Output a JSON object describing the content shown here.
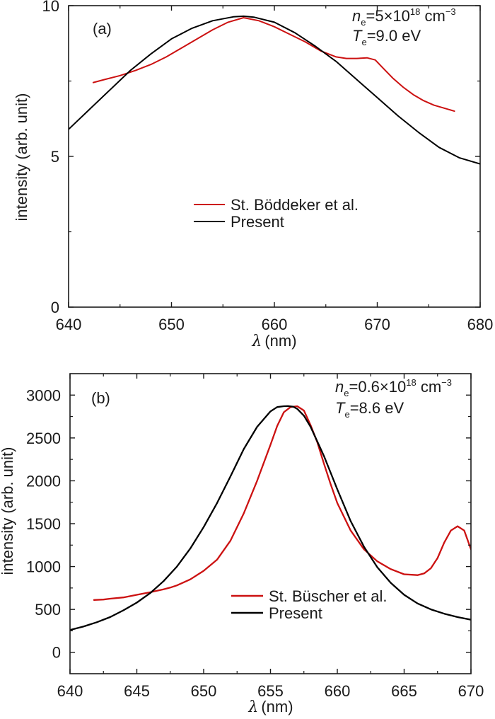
{
  "chart_data": [
    {
      "type": "line",
      "panel_label": "(a)",
      "xlabel_symbol": "λ",
      "xlabel_unit": "(nm)",
      "ylabel": "intensity (arb. unit)",
      "xlim": [
        640,
        680
      ],
      "ylim": [
        0,
        10
      ],
      "xticks": [
        640,
        650,
        660,
        670,
        680
      ],
      "xticks_minor": [
        645,
        655,
        665,
        675
      ],
      "yticks": [
        0,
        5,
        10
      ],
      "yticks_minor": [
        2.5,
        7.5
      ],
      "grid": false,
      "legend_position": "center",
      "annotation": {
        "ne_symbol": "n",
        "ne_sub": "e",
        "ne_value": "=5×10",
        "ne_exp": "18",
        "ne_unit": " cm",
        "ne_unit_exp": "−3",
        "te_symbol": "T",
        "te_sub": "e",
        "te_value": "=9.0 eV"
      },
      "series": [
        {
          "name": "St. Böddeker et al.",
          "color": "#cc1111",
          "x": [
            642.4,
            643.5,
            645,
            646.5,
            648,
            649.5,
            651,
            652.5,
            654,
            655.5,
            657,
            658.5,
            660,
            661.5,
            663,
            664.5,
            666,
            667,
            668,
            669,
            669.8,
            670.5,
            671.5,
            672.5,
            673.5,
            674.5,
            675.5,
            676.5,
            677.5
          ],
          "y": [
            7.45,
            7.55,
            7.68,
            7.85,
            8.05,
            8.3,
            8.6,
            8.9,
            9.2,
            9.45,
            9.6,
            9.5,
            9.3,
            9.05,
            8.8,
            8.5,
            8.3,
            8.25,
            8.25,
            8.27,
            8.2,
            7.95,
            7.6,
            7.3,
            7.05,
            6.85,
            6.7,
            6.6,
            6.5
          ]
        },
        {
          "name": "Present",
          "color": "#000000",
          "x": [
            640,
            642,
            644,
            646,
            648,
            650,
            652,
            654,
            656,
            657,
            658,
            660,
            662,
            664,
            666,
            668,
            670,
            672,
            674,
            676,
            678,
            680
          ],
          "y": [
            5.9,
            6.55,
            7.2,
            7.85,
            8.4,
            8.9,
            9.25,
            9.5,
            9.63,
            9.65,
            9.62,
            9.45,
            9.1,
            8.65,
            8.15,
            7.55,
            6.95,
            6.35,
            5.8,
            5.3,
            4.95,
            4.75
          ]
        }
      ]
    },
    {
      "type": "line",
      "panel_label": "(b)",
      "xlabel_symbol": "λ",
      "xlabel_unit": "(nm)",
      "ylabel": "intensity (arb. unit)",
      "xlim": [
        640,
        670
      ],
      "ylim": [
        -250,
        3250
      ],
      "xticks": [
        640,
        645,
        650,
        655,
        660,
        665,
        670
      ],
      "xticks_minor": [
        642.5,
        647.5,
        652.5,
        657.5,
        662.5,
        667.5
      ],
      "yticks": [
        0,
        500,
        1000,
        1500,
        2000,
        2500,
        3000
      ],
      "yticks_minor": [
        250,
        750,
        1250,
        1750,
        2250,
        2750
      ],
      "grid": false,
      "legend_position": "center-right",
      "annotation": {
        "ne_symbol": "n",
        "ne_sub": "e",
        "ne_value": "=0.6×10",
        "ne_exp": "18",
        "ne_unit": " cm",
        "ne_unit_exp": "−3",
        "te_symbol": "T",
        "te_sub": "e",
        "te_value": "=8.6 eV"
      },
      "series": [
        {
          "name": "St. Büscher et al.",
          "color": "#cc1111",
          "x": [
            641.8,
            642.5,
            643,
            644,
            645,
            646,
            647,
            647.5,
            648,
            649,
            650,
            651,
            652,
            653,
            654,
            655,
            655.5,
            656,
            656.5,
            657,
            657.5,
            658,
            658.5,
            659,
            659.5,
            660,
            661,
            662,
            663,
            664,
            665,
            666,
            666.5,
            667,
            667.5,
            668,
            668.5,
            669,
            669.5,
            670
          ],
          "y": [
            610,
            615,
            625,
            640,
            670,
            700,
            735,
            755,
            780,
            850,
            950,
            1080,
            1300,
            1620,
            2000,
            2420,
            2640,
            2800,
            2860,
            2870,
            2820,
            2650,
            2450,
            2200,
            1960,
            1740,
            1420,
            1200,
            1060,
            970,
            910,
            900,
            920,
            980,
            1100,
            1280,
            1420,
            1470,
            1420,
            1200
          ]
        },
        {
          "name": "Present",
          "color": "#000000",
          "x": [
            640,
            641,
            642,
            643,
            644,
            645,
            646,
            647,
            648,
            649,
            650,
            651,
            652,
            653,
            654,
            655,
            655.5,
            656,
            656.3,
            656.7,
            657,
            657.5,
            658,
            659,
            660,
            661,
            662,
            663,
            664,
            665,
            666,
            667,
            668,
            669,
            670
          ],
          "y": [
            260,
            300,
            350,
            410,
            490,
            580,
            690,
            830,
            1000,
            1210,
            1460,
            1740,
            2050,
            2370,
            2630,
            2810,
            2860,
            2870,
            2872,
            2865,
            2840,
            2760,
            2630,
            2290,
            1900,
            1530,
            1230,
            990,
            810,
            670,
            570,
            500,
            450,
            410,
            380
          ]
        }
      ]
    }
  ]
}
